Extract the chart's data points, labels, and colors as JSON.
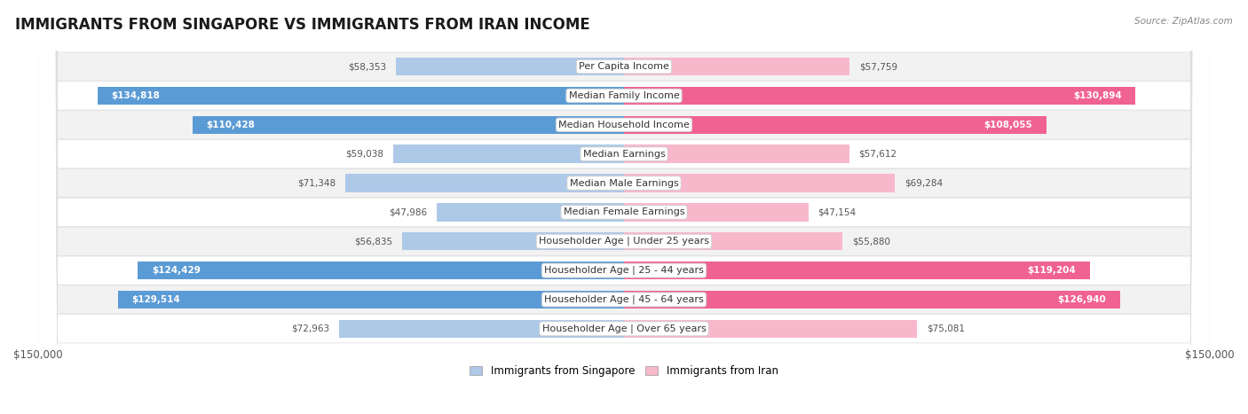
{
  "title": "IMMIGRANTS FROM SINGAPORE VS IMMIGRANTS FROM IRAN INCOME",
  "source": "Source: ZipAtlas.com",
  "categories": [
    "Per Capita Income",
    "Median Family Income",
    "Median Household Income",
    "Median Earnings",
    "Median Male Earnings",
    "Median Female Earnings",
    "Householder Age | Under 25 years",
    "Householder Age | 25 - 44 years",
    "Householder Age | 45 - 64 years",
    "Householder Age | Over 65 years"
  ],
  "singapore_values": [
    58353,
    134818,
    110428,
    59038,
    71348,
    47986,
    56835,
    124429,
    129514,
    72963
  ],
  "iran_values": [
    57759,
    130894,
    108055,
    57612,
    69284,
    47154,
    55880,
    119204,
    126940,
    75081
  ],
  "singapore_labels": [
    "$58,353",
    "$134,818",
    "$110,428",
    "$59,038",
    "$71,348",
    "$47,986",
    "$56,835",
    "$124,429",
    "$129,514",
    "$72,963"
  ],
  "iran_labels": [
    "$57,759",
    "$130,894",
    "$108,055",
    "$57,612",
    "$69,284",
    "$47,154",
    "$55,880",
    "$119,204",
    "$126,940",
    "$75,081"
  ],
  "singapore_color_light": "#aec9e8",
  "singapore_color_dark": "#5b9bd5",
  "iran_color_light": "#f7b8cc",
  "iran_color_dark": "#f06292",
  "max_value": 150000,
  "bg_color": "#ffffff",
  "row_bg_even": "#f2f2f2",
  "row_bg_odd": "#ffffff",
  "title_fontsize": 12,
  "label_fontsize": 8,
  "value_fontsize": 7.5,
  "legend_singapore": "Immigrants from Singapore",
  "legend_iran": "Immigrants from Iran",
  "inside_threshold": 85000
}
